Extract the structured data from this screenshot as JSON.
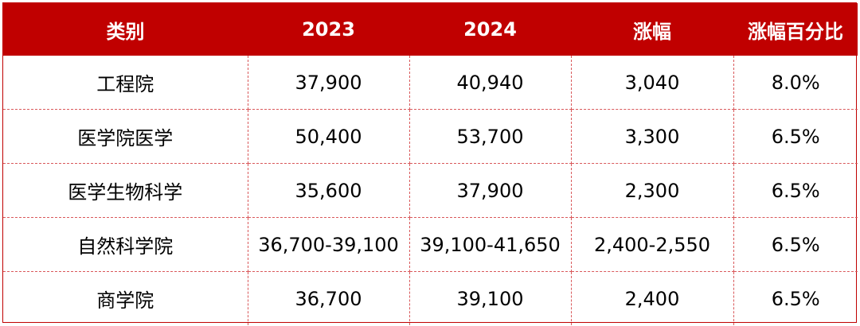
{
  "table": {
    "headers": [
      "类别",
      "2023",
      "2024",
      "涨幅",
      "涨幅百分比"
    ],
    "rows": [
      [
        "工程院",
        "37,900",
        "40,940",
        "3,040",
        "8.0%"
      ],
      [
        "医学院医学",
        "50,400",
        "53,700",
        "3,300",
        "6.5%"
      ],
      [
        "医学生物科学",
        "35,600",
        "37,900",
        "2,300",
        "6.5%"
      ],
      [
        "自然科学院",
        "36,700-39,100",
        "39,100-41,650",
        "2,400-2,550",
        "6.5%"
      ],
      [
        "商学院",
        "36,700",
        "39,100",
        "2,400",
        "6.5%"
      ]
    ]
  },
  "colors": {
    "header_bg": "#c00000",
    "header_text": "#ffffff",
    "grid_line": "#d9595b",
    "body_text": "#000000"
  }
}
